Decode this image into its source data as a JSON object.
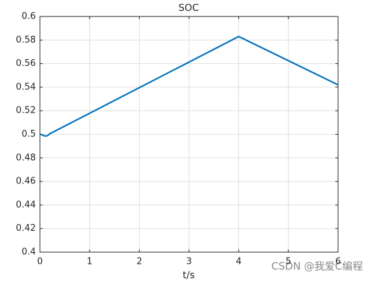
{
  "chart_data": {
    "type": "line",
    "title": "SOC",
    "x_label": "t/s",
    "x": [
      0,
      0.05,
      0.1,
      0.15,
      0.2,
      4,
      6
    ],
    "values": [
      0.5,
      0.4995,
      0.4985,
      0.4988,
      0.5005,
      0.583,
      0.542
    ],
    "color": "#0072bd",
    "xlim": [
      0,
      6
    ],
    "xticks": [
      0,
      1,
      2,
      3,
      4,
      5,
      6
    ],
    "ylim": [
      0.4,
      0.6
    ],
    "yticks": [
      0.4,
      0.42,
      0.44,
      0.46,
      0.48,
      0.5,
      0.52,
      0.54,
      0.56,
      0.58,
      0.6
    ],
    "grid": true
  },
  "watermark": "CSDN @我爱C编程"
}
